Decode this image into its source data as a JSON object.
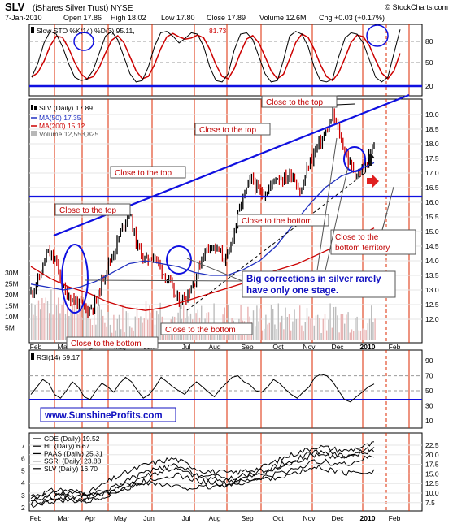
{
  "header": {
    "symbol": "SLV",
    "name": "(iShares Silver Trust) NYSE",
    "source": "© StockCharts.com",
    "date": "7-Jan-2010",
    "open": "Open 17.86",
    "high": "High 18.02",
    "low": "Low 17.80",
    "close": "Close 17.89",
    "volume": "Volume 12.6M",
    "chg": "Chg +0.03 (+0.17%)"
  },
  "colors": {
    "price_up": "#000000",
    "price_down": "#cc0000",
    "ma50": "#2030c0",
    "ma200": "#cc0000",
    "trendline": "#1010e0",
    "vertical_marker": "#dd2a00",
    "annotation_text": "#c00000",
    "watermark": "#1010c0"
  },
  "panels": {
    "stochastic": {
      "legend": [
        "Slow STO %K(14) %D(3) 95.11,",
        "81.73"
      ],
      "y_ticks": [
        "80",
        "50",
        "20"
      ],
      "k_series": [
        25,
        45,
        75,
        92,
        88,
        70,
        45,
        25,
        20,
        22,
        35,
        60,
        85,
        92,
        80,
        55,
        30,
        18,
        20,
        40,
        70,
        90,
        92,
        85,
        75,
        82,
        90,
        88,
        70,
        40,
        20,
        18,
        30,
        65,
        88,
        90,
        80,
        55,
        30,
        18,
        20,
        50,
        85,
        92,
        88,
        70,
        40,
        20,
        18,
        22,
        55,
        82,
        90,
        88,
        75,
        50,
        25,
        18,
        25,
        60,
        95
      ]
    },
    "price": {
      "legend_title": "SLV (Daily) 17.89",
      "legend_ma50": "MA(50) 17.35",
      "legend_ma200": "MA(200) 15.12",
      "legend_volume": "Volume 12,553,825",
      "y_ticks": [
        "19.0",
        "18.5",
        "18.0",
        "17.5",
        "17.0",
        "16.5",
        "16.0",
        "15.5",
        "15.0",
        "14.5",
        "14.0",
        "13.5",
        "13.0",
        "12.5",
        "12.0"
      ],
      "volume_ticks": [
        "30M",
        "25M",
        "20M",
        "15M",
        "10M",
        "5M"
      ],
      "x_ticks": [
        "Feb",
        "Mar",
        "Apr",
        "May",
        "Jun",
        "Jul",
        "Aug",
        "Sep",
        "Oct",
        "Nov",
        "Dec",
        "2010",
        "Feb"
      ],
      "annotations": {
        "top_a": "Close to the top",
        "top_b": "Close to the top",
        "top_c": "Close to the top",
        "top_d": "Close to the top",
        "bottom_a": "Close to the bottom",
        "bottom_b": "Close to the bottom",
        "bottom_c": "Close to the bottom",
        "territory": [
          "Close to the",
          "bottom territory"
        ],
        "big_corrections": [
          "Big corrections in silver rarely",
          "have only one stage."
        ]
      }
    },
    "rsi": {
      "legend": "RSI(14) 59.17",
      "y_ticks": [
        "90",
        "70",
        "50",
        "30",
        "10"
      ],
      "watermark": "www.SunshineProfits.com",
      "series": [
        45,
        55,
        65,
        60,
        45,
        40,
        50,
        62,
        55,
        42,
        38,
        50,
        60,
        55,
        48,
        60,
        68,
        62,
        50,
        40,
        45,
        55,
        68,
        62,
        55,
        50,
        45,
        55,
        62,
        55,
        48,
        42,
        52,
        60,
        68,
        70,
        62,
        58,
        50,
        48,
        55,
        65,
        60,
        52,
        45,
        40,
        48,
        55,
        68,
        72,
        70,
        62,
        50,
        38,
        35,
        42,
        48,
        55,
        59
      ]
    },
    "miners": {
      "y_ticks": [
        "22.5",
        "20.0",
        "17.5",
        "15.0",
        "12.5",
        "10.0",
        "7.5"
      ],
      "left_ticks": [
        "7",
        "6",
        "5",
        "4",
        "3",
        "2"
      ],
      "x_ticks": [
        "Feb",
        "Mar",
        "Apr",
        "May",
        "Jun",
        "Jul",
        "Aug",
        "Sep",
        "Oct",
        "Nov",
        "Dec",
        "2010",
        "Feb"
      ],
      "legend": [
        "CDE (Daily) 19.52",
        "HL (Daily) 6.67",
        "PAAS (Daily) 25.31",
        "SSRI (Daily) 23.88",
        "SLV (Daily) 16.70"
      ]
    }
  },
  "chart_data": {
    "type": "line",
    "title": "SLV (iShares Silver Trust) NYSE",
    "x": [
      "Feb",
      "Mar",
      "Apr",
      "May",
      "Jun",
      "Jul",
      "Aug",
      "Sep",
      "Oct",
      "Nov",
      "Dec",
      "2010",
      "Feb"
    ],
    "price_close": [
      12.9,
      13.4,
      14.3,
      14.0,
      13.0,
      12.7,
      12.5,
      12.3,
      12.6,
      13.6,
      14.2,
      15.0,
      15.7,
      14.5,
      14.0,
      14.2,
      13.7,
      13.2,
      12.6,
      12.8,
      13.3,
      14.2,
      14.6,
      14.3,
      14.0,
      15.2,
      16.2,
      16.8,
      16.3,
      16.4,
      16.9,
      16.8,
      17.0,
      16.3,
      17.3,
      17.9,
      18.3,
      19.0,
      18.1,
      17.3,
      16.9,
      17.3,
      17.9
    ],
    "ma50": [
      13.2,
      13.1,
      13.0,
      13.1,
      13.3,
      13.6,
      13.9,
      14.0,
      13.9,
      13.8,
      13.6,
      13.5,
      13.5,
      13.7,
      14.0,
      14.5,
      15.2,
      15.9,
      16.5,
      16.9,
      17.1,
      17.35
    ],
    "ma200": [
      13.8,
      13.4,
      13.1,
      12.9,
      12.6,
      12.4,
      12.3,
      12.4,
      12.6,
      12.8,
      13.0,
      13.2,
      13.5,
      13.7,
      13.9,
      14.2,
      14.5,
      14.8,
      15.12
    ],
    "support_level": 15.8,
    "ylim": [
      11.5,
      19.5
    ],
    "series": [
      {
        "name": "CDE (Daily) 19.52",
        "values": [
          3.0,
          3.5,
          3.2,
          4.5,
          5.5,
          6.0,
          5.0,
          4.8,
          5.2,
          6.2,
          7.0,
          6.6,
          7.2
        ]
      },
      {
        "name": "HL (Daily) 6.67",
        "values": [
          2.4,
          2.8,
          2.7,
          3.6,
          4.6,
          5.2,
          4.4,
          4.2,
          4.7,
          5.5,
          6.4,
          6.0,
          6.7
        ]
      },
      {
        "name": "PAAS (Daily) 25.31",
        "values": [
          2.2,
          2.6,
          2.5,
          3.3,
          4.2,
          4.7,
          4.1,
          3.9,
          4.4,
          5.0,
          5.8,
          5.5,
          6.2
        ]
      },
      {
        "name": "SSRI (Daily) 23.88",
        "values": [
          2.6,
          3.0,
          2.9,
          3.8,
          4.9,
          5.4,
          4.6,
          4.4,
          4.9,
          5.7,
          6.6,
          6.2,
          6.9
        ]
      },
      {
        "name": "SLV (Daily) 16.70",
        "values": [
          2.9,
          3.2,
          3.0,
          3.3,
          4.1,
          3.7,
          3.6,
          3.9,
          4.3,
          4.6,
          5.3,
          4.8,
          5.0
        ]
      }
    ]
  }
}
